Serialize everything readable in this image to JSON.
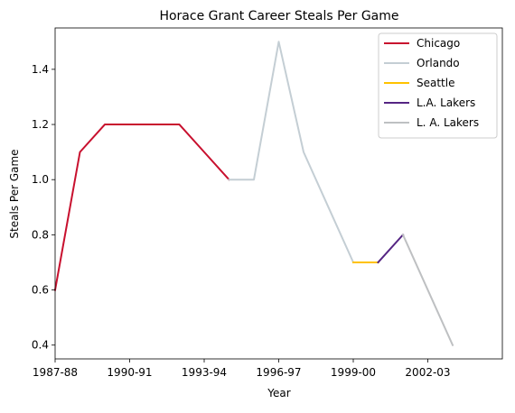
{
  "chart_data": {
    "type": "line",
    "title": "Horace Grant Career Steals Per Game",
    "xlabel": "Year",
    "ylabel": "Steals Per Game",
    "xlim": [
      1987,
      2005
    ],
    "ylim": [
      0.35,
      1.55
    ],
    "x_ticks": [
      {
        "value": 1987,
        "label": "1987-88"
      },
      {
        "value": 1990,
        "label": "1990-91"
      },
      {
        "value": 1993,
        "label": "1993-94"
      },
      {
        "value": 1996,
        "label": "1996-97"
      },
      {
        "value": 1999,
        "label": "1999-00"
      },
      {
        "value": 2002,
        "label": "2002-03"
      }
    ],
    "y_ticks": [
      {
        "value": 0.4,
        "label": "0.4"
      },
      {
        "value": 0.6,
        "label": "0.6"
      },
      {
        "value": 0.8,
        "label": "0.8"
      },
      {
        "value": 1.0,
        "label": "1.0"
      },
      {
        "value": 1.2,
        "label": "1.2"
      },
      {
        "value": 1.4,
        "label": "1.4"
      }
    ],
    "grid": false,
    "legend": "top-right",
    "series": [
      {
        "name": "Chicago",
        "color": "#c8102e",
        "x": [
          1987,
          1988,
          1989,
          1990,
          1991,
          1992,
          1993,
          1994
        ],
        "y": [
          0.6,
          1.1,
          1.2,
          1.2,
          1.2,
          1.2,
          1.1,
          1.0
        ]
      },
      {
        "name": "Orlando",
        "color": "#c4ced4",
        "x": [
          1994,
          1995,
          1996,
          1997,
          1998,
          1999
        ],
        "y": [
          1.0,
          1.0,
          1.5,
          1.1,
          0.9,
          0.7
        ]
      },
      {
        "name": "Seattle",
        "color": "#ffc200",
        "x": [
          1999,
          2000
        ],
        "y": [
          0.7,
          0.7
        ]
      },
      {
        "name": "L.A. Lakers",
        "color": "#552583",
        "x": [
          2000,
          2001
        ],
        "y": [
          0.7,
          0.8
        ]
      },
      {
        "name": "L. A. Lakers",
        "color": "#bec0c2",
        "x": [
          2001,
          2002,
          2003
        ],
        "y": [
          0.8,
          0.6,
          0.4
        ]
      }
    ]
  }
}
